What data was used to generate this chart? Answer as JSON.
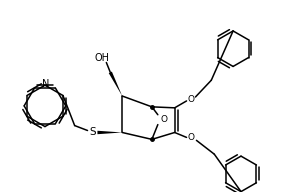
{
  "bg_color": "#ffffff",
  "line_color": "#000000",
  "lw": 1.1,
  "figsize": [
    2.82,
    1.93
  ],
  "dpi": 100,
  "xlim": [
    0,
    282
  ],
  "ylim": [
    0,
    193
  ]
}
